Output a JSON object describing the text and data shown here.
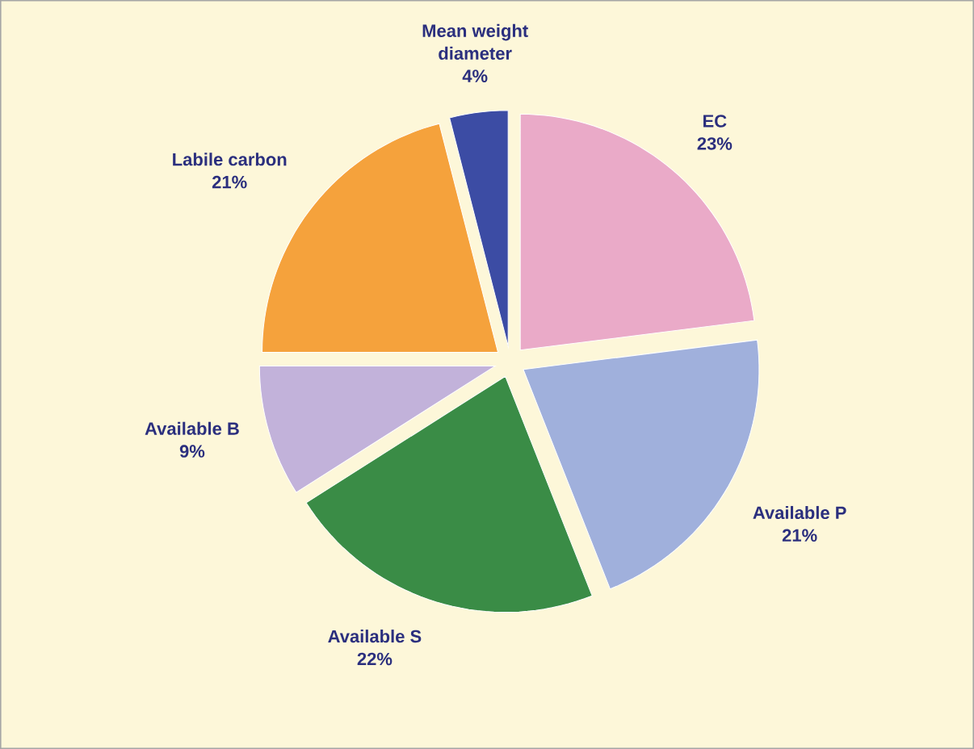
{
  "chart_data": {
    "type": "pie",
    "categories": [
      "EC",
      "Available P",
      "Available S",
      "Available B",
      "Labile carbon",
      "Mean weight diameter"
    ],
    "values": [
      23,
      21,
      22,
      9,
      21,
      4
    ],
    "value_labels": [
      "23%",
      "21%",
      "22%",
      "9%",
      "21%",
      "4%"
    ],
    "colors": [
      "#eaaac8",
      "#a0b0dc",
      "#3a8c46",
      "#c2b2da",
      "#f5a23c",
      "#3c4ca4"
    ]
  }
}
